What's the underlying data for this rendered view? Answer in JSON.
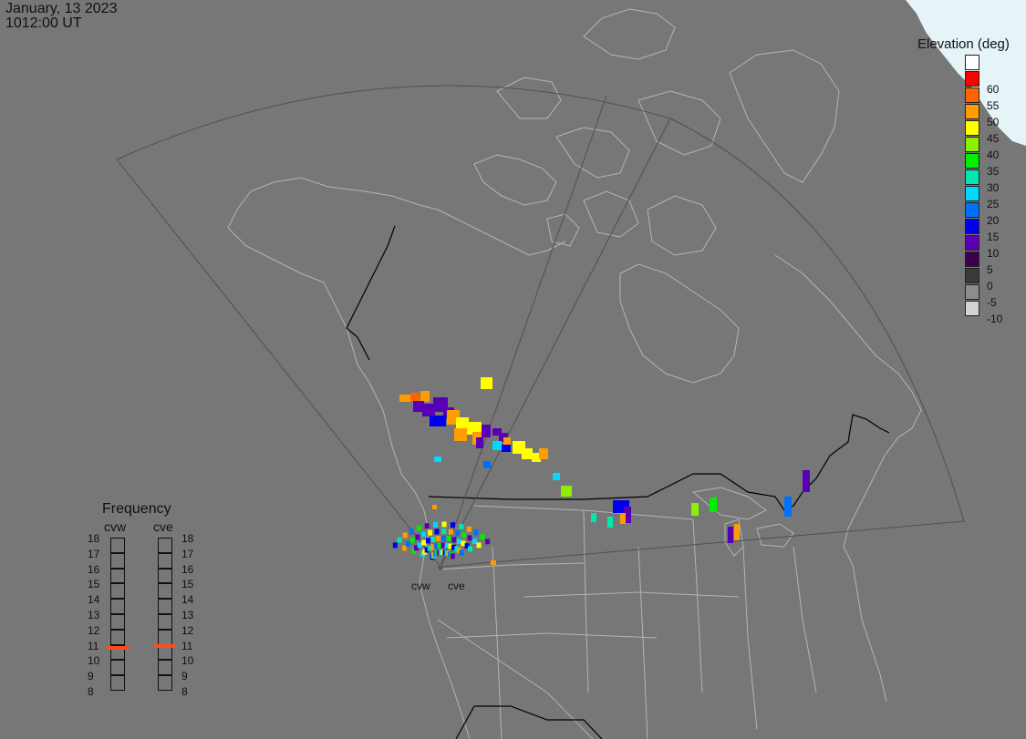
{
  "header": {
    "date": "January, 13 2023",
    "time": "1012:00 UT"
  },
  "legend": {
    "title": "Elevation (deg)",
    "entries": [
      {
        "label": "",
        "color": "#ffffff"
      },
      {
        "label": "60",
        "color": "#ff0000"
      },
      {
        "label": "55",
        "color": "#ff6400"
      },
      {
        "label": "50",
        "color": "#ff9c00"
      },
      {
        "label": "45",
        "color": "#ffff00"
      },
      {
        "label": "40",
        "color": "#8cf000"
      },
      {
        "label": "35",
        "color": "#00ee00"
      },
      {
        "label": "30",
        "color": "#00e8b0"
      },
      {
        "label": "25",
        "color": "#00d8ff"
      },
      {
        "label": "20",
        "color": "#0070ff"
      },
      {
        "label": "15",
        "color": "#0000ee"
      },
      {
        "label": "10",
        "color": "#5a00b4"
      },
      {
        "label": "5",
        "color": "#3c0050"
      },
      {
        "label": "0",
        "color": "#3a3a3a"
      },
      {
        "label": "-5",
        "color": "#8c8c8c"
      },
      {
        "label": "-10",
        "color": "#d2d2d2"
      }
    ]
  },
  "frequency": {
    "title": "Frequency",
    "radars": [
      "cvw",
      "cve"
    ],
    "scale": [
      "18",
      "17",
      "16",
      "15",
      "14",
      "13",
      "12",
      "11",
      "10",
      "9",
      "8"
    ],
    "selected_mhz": {
      "cvw": 10.8,
      "cve": 10.9
    },
    "marker_color": "#ff4a1e"
  },
  "sites": [
    {
      "name": "cvw"
    },
    {
      "name": "cve"
    }
  ],
  "colors": {
    "background": "#777777",
    "land_outline": "#b4b4b4",
    "fov_outline": "#505050",
    "borders": "#000000",
    "sea_ice": "#e6f3f7",
    "site_marker": "#5a5a5a"
  },
  "icons": {
    "site_marker": "site-dot-icon"
  }
}
